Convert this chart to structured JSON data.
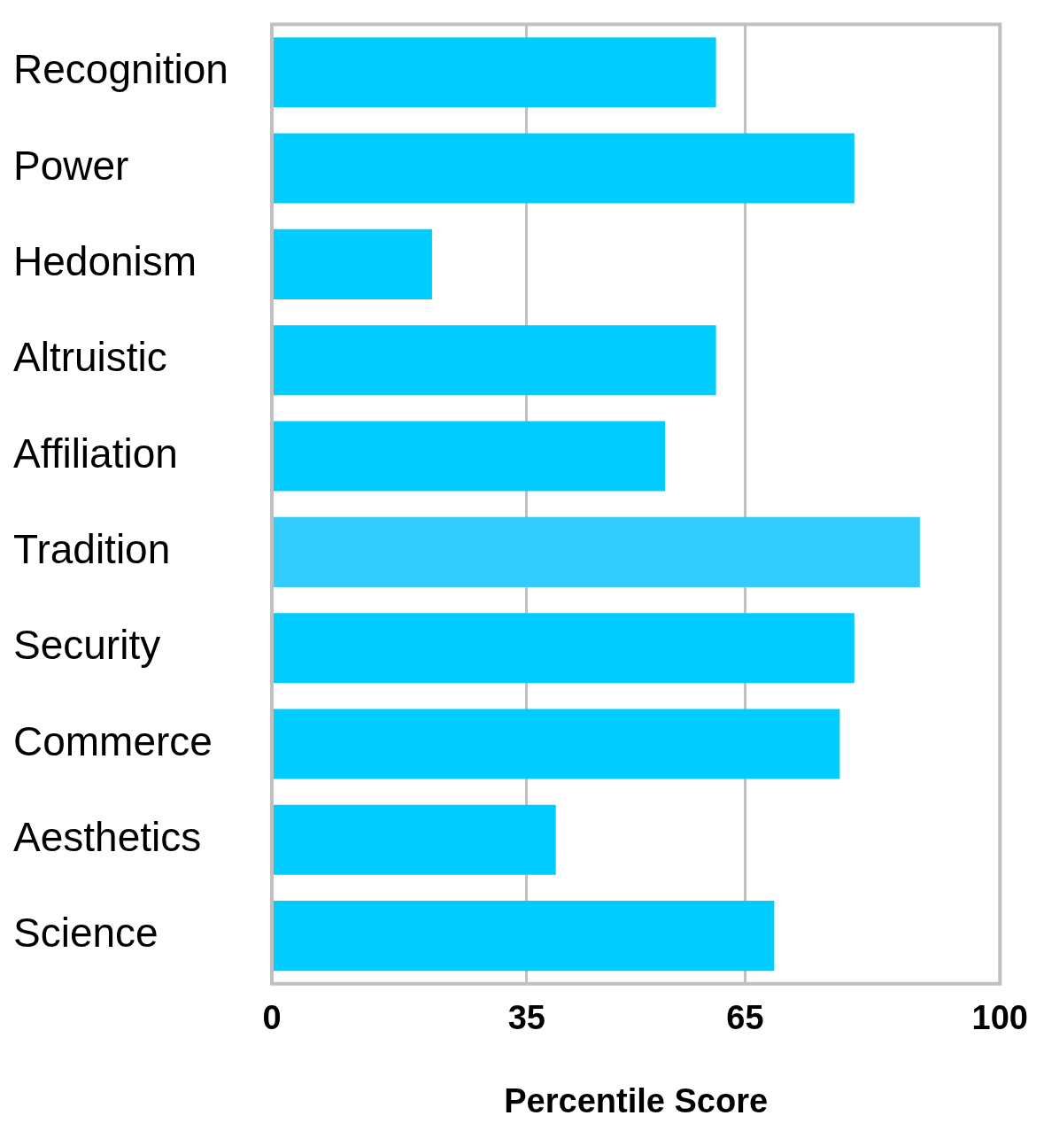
{
  "chart_data": {
    "type": "bar",
    "orientation": "horizontal",
    "xlabel": "Percentile Score",
    "categories": [
      "Recognition",
      "Power",
      "Hedonism",
      "Altruistic",
      "Affiliation",
      "Tradition",
      "Security",
      "Commerce",
      "Aesthetics",
      "Science"
    ],
    "values": [
      61,
      80,
      22,
      61,
      54,
      89,
      80,
      78,
      39,
      69
    ],
    "colors": [
      "#00ccff",
      "#00ccff",
      "#00ccff",
      "#00ccff",
      "#00ccff",
      "#33ccff",
      "#00ccff",
      "#00ccff",
      "#00ccff",
      "#00ccff"
    ],
    "xlim": [
      0,
      100
    ],
    "xticks": [
      0,
      35,
      65,
      100
    ],
    "grid": "x",
    "legend": false
  }
}
